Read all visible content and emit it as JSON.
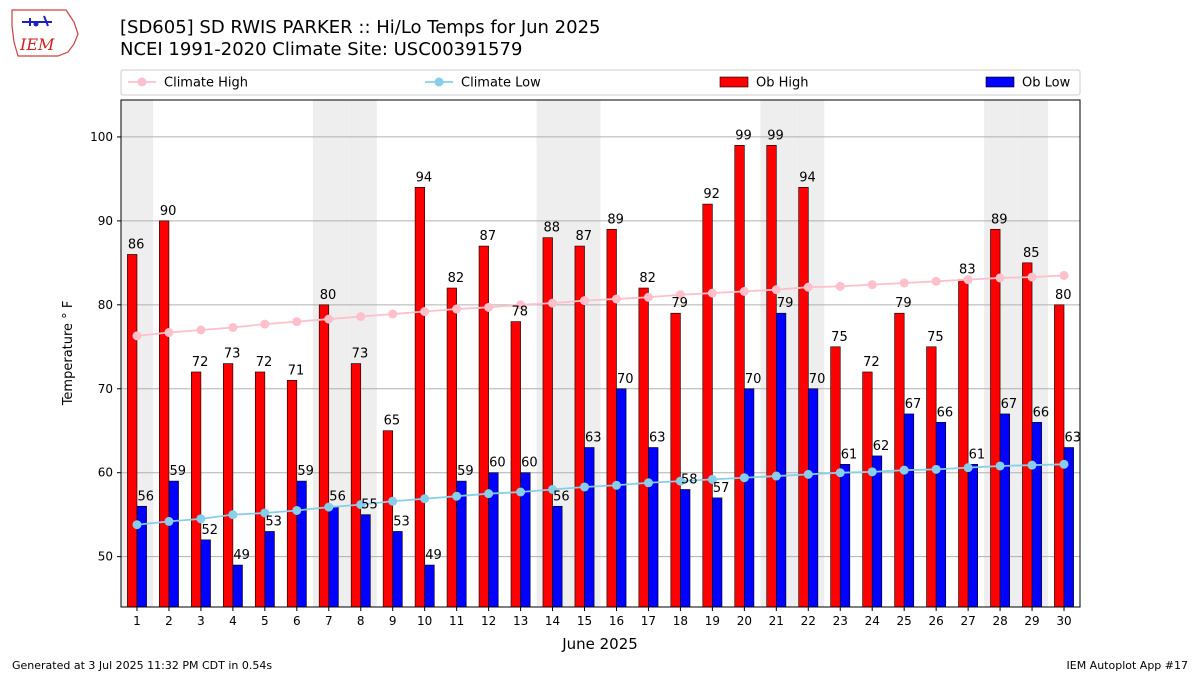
{
  "header": {
    "title": "[SD605] SD RWIS PARKER :: Hi/Lo Temps for Jun 2025",
    "subtitle": "NCEI 1991-2020 Climate Site: USC00391579",
    "logo_text": "IEM"
  },
  "footer": {
    "left": "Generated at 3 Jul 2025 11:32 PM CDT in 0.54s",
    "right": "IEM Autoplot App #17"
  },
  "chart_data": {
    "type": "bar",
    "xlabel": "June 2025",
    "ylabel": "Temperature ° F",
    "ylim": [
      44,
      104.4
    ],
    "yticks": [
      50,
      60,
      70,
      80,
      90,
      100
    ],
    "grid": true,
    "legend_position": "top",
    "weekend_shading": true,
    "weekend_days": [
      1,
      7,
      8,
      14,
      15,
      21,
      22,
      28,
      29
    ],
    "categories": [
      "1",
      "2",
      "3",
      "4",
      "5",
      "6",
      "7",
      "8",
      "9",
      "10",
      "11",
      "12",
      "13",
      "14",
      "15",
      "16",
      "17",
      "18",
      "19",
      "20",
      "21",
      "22",
      "23",
      "24",
      "25",
      "26",
      "27",
      "28",
      "29",
      "30"
    ],
    "legend": [
      {
        "label": "Climate High",
        "kind": "line",
        "color": "#ffc0cb"
      },
      {
        "label": "Climate Low",
        "kind": "line",
        "color": "#87ceeb"
      },
      {
        "label": "Ob High",
        "kind": "bar",
        "color": "#ff0000"
      },
      {
        "label": "Ob Low",
        "kind": "bar",
        "color": "#0000ff"
      }
    ],
    "series": [
      {
        "name": "Ob High",
        "kind": "bar",
        "color": "#ff0000",
        "values": [
          86,
          90,
          72,
          73,
          72,
          71,
          80,
          73,
          65,
          94,
          82,
          87,
          78,
          88,
          87,
          89,
          82,
          79,
          92,
          99,
          99,
          94,
          75,
          72,
          79,
          75,
          83,
          89,
          85,
          80
        ]
      },
      {
        "name": "Ob Low",
        "kind": "bar",
        "color": "#0000ff",
        "values": [
          56,
          59,
          52,
          49,
          53,
          59,
          56,
          55,
          53,
          49,
          59,
          60,
          60,
          56,
          63,
          70,
          63,
          58,
          57,
          70,
          79,
          70,
          61,
          62,
          67,
          66,
          61,
          67,
          66,
          63
        ]
      },
      {
        "name": "Climate High",
        "kind": "line",
        "color": "#ffc0cb",
        "values": [
          76.3,
          76.7,
          77.0,
          77.3,
          77.7,
          78.0,
          78.3,
          78.6,
          78.9,
          79.2,
          79.5,
          79.7,
          80.0,
          80.2,
          80.5,
          80.7,
          80.9,
          81.2,
          81.4,
          81.6,
          81.8,
          82.1,
          82.2,
          82.4,
          82.6,
          82.8,
          83.0,
          83.2,
          83.3,
          83.5
        ]
      },
      {
        "name": "Climate Low",
        "kind": "line",
        "color": "#87ceeb",
        "values": [
          53.8,
          54.2,
          54.5,
          55.0,
          55.2,
          55.5,
          55.9,
          56.2,
          56.6,
          56.9,
          57.2,
          57.5,
          57.7,
          58.0,
          58.3,
          58.5,
          58.8,
          59.0,
          59.2,
          59.4,
          59.6,
          59.8,
          60.0,
          60.1,
          60.3,
          60.4,
          60.6,
          60.8,
          60.9,
          61.0
        ]
      }
    ]
  }
}
